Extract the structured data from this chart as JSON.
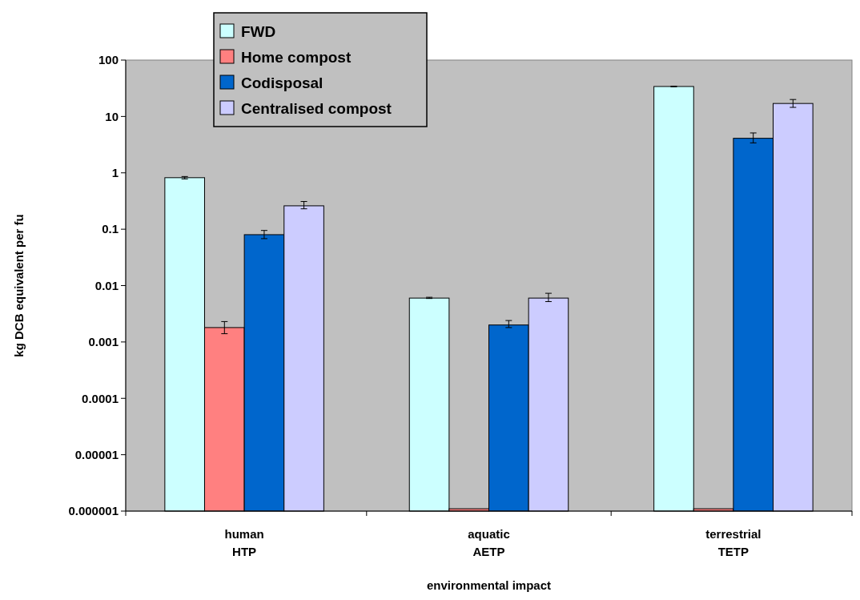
{
  "chart_data": {
    "type": "bar",
    "xlabel": "environmental impact",
    "ylabel": "kg DCB equivalent per fu",
    "categories": [
      "human\nHTP",
      "aquatic\nAETP",
      "terrestrial\nTETP"
    ],
    "series": [
      {
        "name": "FWD",
        "color": "#ccffff",
        "values": [
          0.82,
          0.006,
          34
        ],
        "errors": [
          [
            0.78,
            0.86
          ],
          [
            0.0059,
            0.0062
          ],
          [
            33.5,
            34.5
          ]
        ]
      },
      {
        "name": "Home compost",
        "color": "#ff8080",
        "values": [
          0.0018,
          1.1e-06,
          1.1e-06
        ],
        "errors": [
          [
            0.0014,
            0.0023
          ],
          null,
          null
        ]
      },
      {
        "name": "Codisposal",
        "color": "#0066cc",
        "values": [
          0.08,
          0.002,
          4.1
        ],
        "errors": [
          [
            0.068,
            0.095
          ],
          [
            0.0018,
            0.0024
          ],
          [
            3.4,
            5.1
          ]
        ]
      },
      {
        "name": "Centralised compost",
        "color": "#ccccff",
        "values": [
          0.26,
          0.006,
          17
        ],
        "errors": [
          [
            0.23,
            0.31
          ],
          [
            0.0052,
            0.0073
          ],
          [
            14.5,
            20
          ]
        ]
      }
    ],
    "log": true,
    "ylim": [
      1e-06,
      100
    ],
    "yticks": [
      {
        "value": 1e-06,
        "label": "0.000001"
      },
      {
        "value": 1e-05,
        "label": "0.00001"
      },
      0.0001,
      0.001,
      0.01,
      0.1,
      1,
      10,
      100
    ],
    "grid": false,
    "legend": "top left"
  }
}
